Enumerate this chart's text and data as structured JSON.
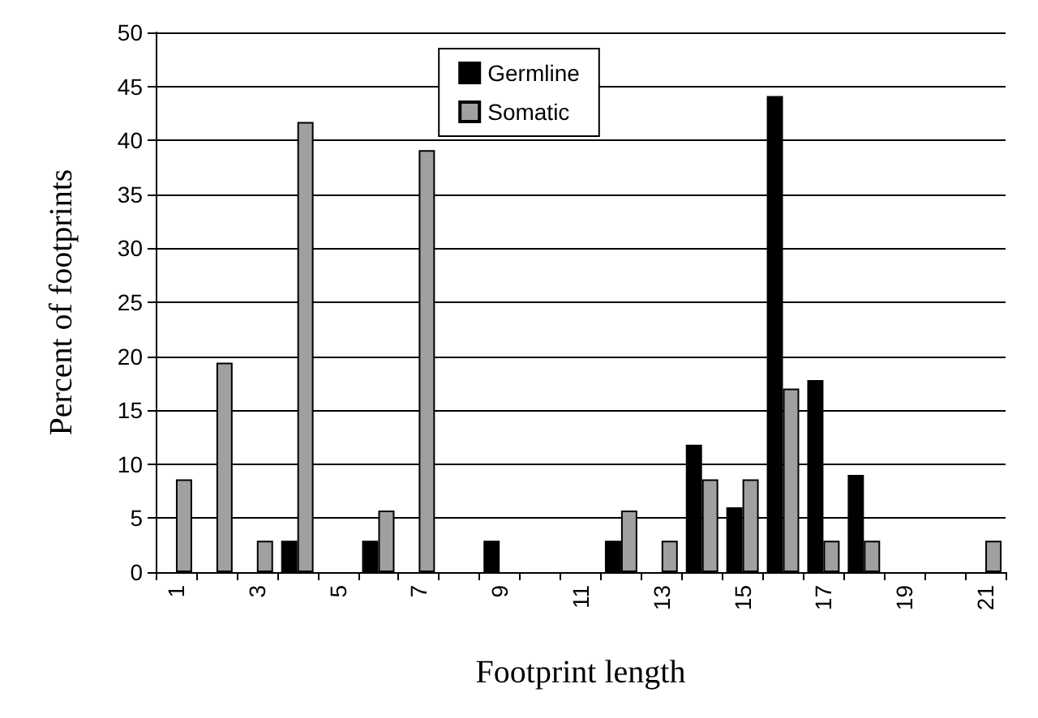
{
  "chart_data": {
    "type": "bar",
    "xlabel": "Footprint length",
    "ylabel": "Percent of footprints",
    "categories": [
      "1",
      null,
      "3",
      null,
      "5",
      null,
      "7",
      null,
      "9",
      null,
      "11",
      null,
      "13",
      null,
      "15",
      null,
      "17",
      null,
      "19",
      null,
      "21"
    ],
    "series": [
      {
        "name": "Germline",
        "color": "#000000",
        "values": [
          0,
          0,
          0,
          2.9,
          0,
          2.9,
          0,
          0,
          2.9,
          0,
          0,
          2.9,
          0,
          11.8,
          6,
          44.1,
          17.8,
          9,
          0,
          0,
          0
        ]
      },
      {
        "name": "Somatic",
        "color": "#a0a0a0",
        "values": [
          8.6,
          19.4,
          2.9,
          41.7,
          0,
          5.7,
          39.1,
          0,
          0,
          0,
          0,
          5.7,
          2.9,
          8.6,
          8.6,
          17,
          2.9,
          2.9,
          0,
          0,
          2.9
        ]
      }
    ],
    "ylim": [
      0,
      50
    ],
    "yticks": [
      0,
      5,
      10,
      15,
      20,
      25,
      30,
      35,
      40,
      45,
      50
    ],
    "grid": "y",
    "legend": "top"
  }
}
